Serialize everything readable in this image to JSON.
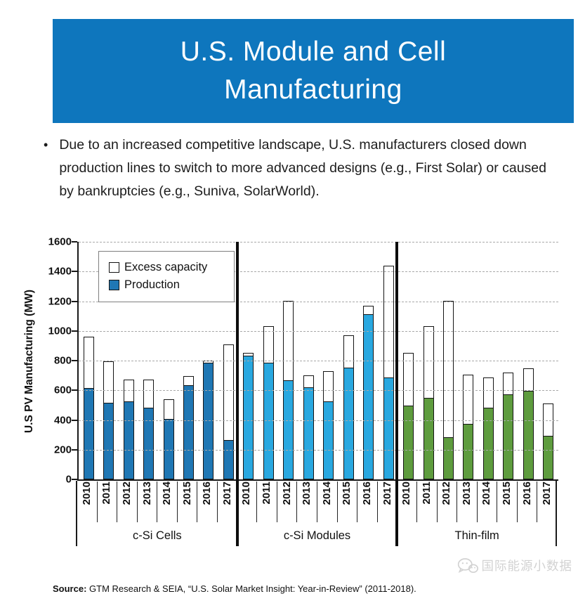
{
  "header": {
    "title": "U.S. Module and Cell Manufacturing",
    "background_color": "#0E76BD"
  },
  "bullet": {
    "marker": "•",
    "text": "Due to an increased competitive landscape, U.S. manufacturers closed down production lines to switch to more advanced designs (e.g., First Solar) or caused by bankruptcies (e.g., Suniva, SolarWorld)."
  },
  "chart_data": {
    "type": "bar",
    "stacked": true,
    "ylabel": "U.S PV Manufacturing (MW)",
    "ylim": [
      0,
      1600
    ],
    "ytick_step": 200,
    "grid": "dashed-horizontal",
    "legend": {
      "position": "top-left-inside",
      "entries": [
        {
          "label": "Excess capacity",
          "swatch_color": "#FFFFFF"
        },
        {
          "label": "Production",
          "swatch_color": "#1F77B4"
        }
      ]
    },
    "years": [
      "2010",
      "2011",
      "2012",
      "2013",
      "2014",
      "2015",
      "2016",
      "2017"
    ],
    "groups": [
      {
        "label": "c-Si Cells",
        "bar_color": "#1F77B4",
        "production": [
          610,
          510,
          520,
          480,
          400,
          630,
          780,
          260
        ],
        "excess_capacity": [
          350,
          285,
          150,
          190,
          140,
          65,
          20,
          650
        ]
      },
      {
        "label": "c-Si Modules",
        "bar_color": "#29A8E0",
        "production": [
          830,
          780,
          665,
          615,
          520,
          750,
          1110,
          680
        ],
        "excess_capacity": [
          20,
          250,
          535,
          85,
          210,
          220,
          60,
          760
        ]
      },
      {
        "label": "Thin-film",
        "bar_color": "#5E9C3E",
        "production": [
          490,
          545,
          280,
          370,
          480,
          570,
          590,
          290
        ],
        "excess_capacity": [
          360,
          485,
          920,
          335,
          205,
          150,
          160,
          220
        ]
      }
    ]
  },
  "footer": {
    "source_label": "Source:",
    "source_text": " GTM Research & SEIA, “U.S. Solar Market Insight: Year-in-Review” (2011-2018)."
  },
  "watermark": {
    "icon": "wechat-chat-bubbles-icon",
    "text": "国际能源小数据"
  }
}
